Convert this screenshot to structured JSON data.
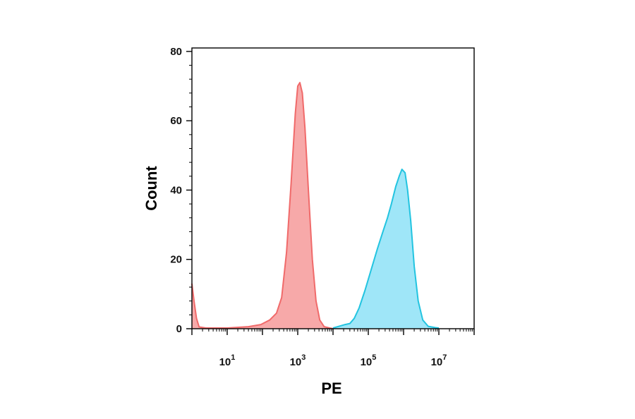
{
  "chart_data": {
    "type": "area",
    "title": "",
    "xlabel": "PE",
    "ylabel": "Count",
    "x_scale": "log",
    "xlim": [
      1,
      100000000
    ],
    "ylim": [
      0,
      81
    ],
    "grid": false,
    "legend": "none",
    "y_ticks": [
      {
        "value": 0,
        "label": "0"
      },
      {
        "value": 20,
        "label": "20"
      },
      {
        "value": 40,
        "label": "40"
      },
      {
        "value": 60,
        "label": "60"
      },
      {
        "value": 80,
        "label": "80"
      }
    ],
    "x_ticks": [
      {
        "value": 10,
        "base": "10",
        "exp": "1"
      },
      {
        "value": 1000,
        "base": "10",
        "exp": "3"
      },
      {
        "value": 100000,
        "base": "10",
        "exp": "5"
      },
      {
        "value": 10000000,
        "base": "10",
        "exp": "7"
      }
    ],
    "series": [
      {
        "color": "#f06a6a",
        "fill": "#f7a9a9",
        "points": [
          [
            1,
            13
          ],
          [
            1.15,
            8
          ],
          [
            1.35,
            3
          ],
          [
            1.6,
            0.5
          ],
          [
            2.5,
            0.2
          ],
          [
            10,
            0.2
          ],
          [
            40,
            0.6
          ],
          [
            90,
            1.2
          ],
          [
            160,
            2.5
          ],
          [
            250,
            4.5
          ],
          [
            350,
            9
          ],
          [
            480,
            22
          ],
          [
            650,
            42
          ],
          [
            850,
            62
          ],
          [
            1000,
            70
          ],
          [
            1150,
            71
          ],
          [
            1350,
            68
          ],
          [
            1600,
            58
          ],
          [
            2000,
            40
          ],
          [
            2600,
            20
          ],
          [
            3300,
            8
          ],
          [
            4200,
            2.5
          ],
          [
            5600,
            0.6
          ],
          [
            8000,
            0.2
          ],
          [
            10000,
            0
          ]
        ]
      },
      {
        "color": "#22c4e0",
        "fill": "#9fe6f8",
        "points": [
          [
            10000,
            0.2
          ],
          [
            16000,
            0.8
          ],
          [
            22000,
            1.2
          ],
          [
            30000,
            1.5
          ],
          [
            40000,
            3
          ],
          [
            55000,
            6
          ],
          [
            80000,
            11
          ],
          [
            120000,
            17
          ],
          [
            180000,
            23
          ],
          [
            260000,
            28
          ],
          [
            350000,
            32
          ],
          [
            450000,
            36
          ],
          [
            600000,
            41
          ],
          [
            750000,
            44
          ],
          [
            900000,
            46
          ],
          [
            1100000,
            45
          ],
          [
            1300000,
            40
          ],
          [
            1600000,
            31
          ],
          [
            2000000,
            18
          ],
          [
            2600000,
            8
          ],
          [
            3500000,
            2.5
          ],
          [
            5000000,
            0.7
          ],
          [
            8000000,
            0.3
          ],
          [
            10000000,
            0.2
          ]
        ]
      }
    ]
  }
}
